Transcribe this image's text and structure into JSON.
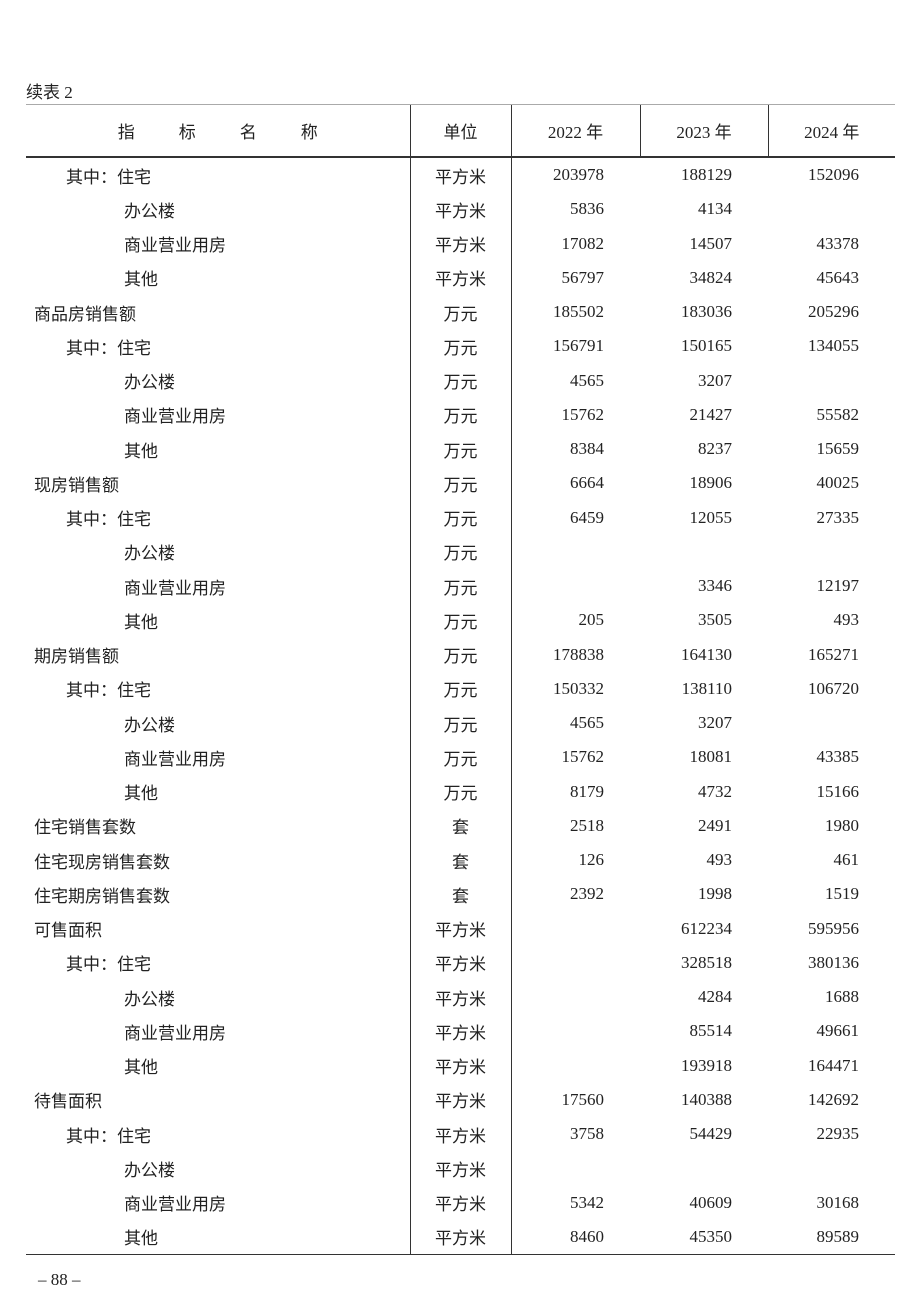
{
  "caption": "续表 2",
  "header": {
    "name_chars": [
      "指",
      "标",
      "名",
      "称"
    ],
    "unit": "单位",
    "years": [
      "2022 年",
      "2023 年",
      "2024 年"
    ]
  },
  "rows": [
    {
      "name": "其中：住宅",
      "level": 1,
      "unit": "平方米",
      "v": [
        "203978",
        "188129",
        "152096"
      ]
    },
    {
      "name": "办公楼",
      "level": 2,
      "unit": "平方米",
      "v": [
        "5836",
        "4134",
        ""
      ]
    },
    {
      "name": "商业营业用房",
      "level": 2,
      "unit": "平方米",
      "v": [
        "17082",
        "14507",
        "43378"
      ]
    },
    {
      "name": "其他",
      "level": 2,
      "unit": "平方米",
      "v": [
        "56797",
        "34824",
        "45643"
      ]
    },
    {
      "name": "商品房销售额",
      "level": 0,
      "unit": "万元",
      "v": [
        "185502",
        "183036",
        "205296"
      ]
    },
    {
      "name": "其中：住宅",
      "level": 1,
      "unit": "万元",
      "v": [
        "156791",
        "150165",
        "134055"
      ]
    },
    {
      "name": "办公楼",
      "level": 2,
      "unit": "万元",
      "v": [
        "4565",
        "3207",
        ""
      ]
    },
    {
      "name": "商业营业用房",
      "level": 2,
      "unit": "万元",
      "v": [
        "15762",
        "21427",
        "55582"
      ]
    },
    {
      "name": "其他",
      "level": 2,
      "unit": "万元",
      "v": [
        "8384",
        "8237",
        "15659"
      ]
    },
    {
      "name": "现房销售额",
      "level": 0,
      "unit": "万元",
      "v": [
        "6664",
        "18906",
        "40025"
      ]
    },
    {
      "name": "其中：住宅",
      "level": 1,
      "unit": "万元",
      "v": [
        "6459",
        "12055",
        "27335"
      ]
    },
    {
      "name": "办公楼",
      "level": 2,
      "unit": "万元",
      "v": [
        "",
        "",
        ""
      ]
    },
    {
      "name": "商业营业用房",
      "level": 2,
      "unit": "万元",
      "v": [
        "",
        "3346",
        "12197"
      ]
    },
    {
      "name": "其他",
      "level": 2,
      "unit": "万元",
      "v": [
        "205",
        "3505",
        "493"
      ]
    },
    {
      "name": "期房销售额",
      "level": 0,
      "unit": "万元",
      "v": [
        "178838",
        "164130",
        "165271"
      ]
    },
    {
      "name": "其中：住宅",
      "level": 1,
      "unit": "万元",
      "v": [
        "150332",
        "138110",
        "106720"
      ]
    },
    {
      "name": "办公楼",
      "level": 2,
      "unit": "万元",
      "v": [
        "4565",
        "3207",
        ""
      ]
    },
    {
      "name": "商业营业用房",
      "level": 2,
      "unit": "万元",
      "v": [
        "15762",
        "18081",
        "43385"
      ]
    },
    {
      "name": "其他",
      "level": 2,
      "unit": "万元",
      "v": [
        "8179",
        "4732",
        "15166"
      ]
    },
    {
      "name": "住宅销售套数",
      "level": 0,
      "unit": "套",
      "v": [
        "2518",
        "2491",
        "1980"
      ]
    },
    {
      "name": "住宅现房销售套数",
      "level": 0,
      "unit": "套",
      "v": [
        "126",
        "493",
        "461"
      ]
    },
    {
      "name": "住宅期房销售套数",
      "level": 0,
      "unit": "套",
      "v": [
        "2392",
        "1998",
        "1519"
      ]
    },
    {
      "name": "可售面积",
      "level": 0,
      "unit": "平方米",
      "v": [
        "",
        "612234",
        "595956"
      ]
    },
    {
      "name": "其中：住宅",
      "level": 1,
      "unit": "平方米",
      "v": [
        "",
        "328518",
        "380136"
      ]
    },
    {
      "name": "办公楼",
      "level": 2,
      "unit": "平方米",
      "v": [
        "",
        "4284",
        "1688"
      ]
    },
    {
      "name": "商业营业用房",
      "level": 2,
      "unit": "平方米",
      "v": [
        "",
        "85514",
        "49661"
      ]
    },
    {
      "name": "其他",
      "level": 2,
      "unit": "平方米",
      "v": [
        "",
        "193918",
        "164471"
      ]
    },
    {
      "name": "待售面积",
      "level": 0,
      "unit": "平方米",
      "v": [
        "17560",
        "140388",
        "142692"
      ]
    },
    {
      "name": "其中：住宅",
      "level": 1,
      "unit": "平方米",
      "v": [
        "3758",
        "54429",
        "22935"
      ]
    },
    {
      "name": "办公楼",
      "level": 2,
      "unit": "平方米",
      "v": [
        "",
        "",
        ""
      ]
    },
    {
      "name": "商业营业用房",
      "level": 2,
      "unit": "平方米",
      "v": [
        "5342",
        "40609",
        "30168"
      ]
    },
    {
      "name": "其他",
      "level": 2,
      "unit": "平方米",
      "v": [
        "8460",
        "45350",
        "89589"
      ]
    }
  ],
  "page_number": "– 88 –"
}
